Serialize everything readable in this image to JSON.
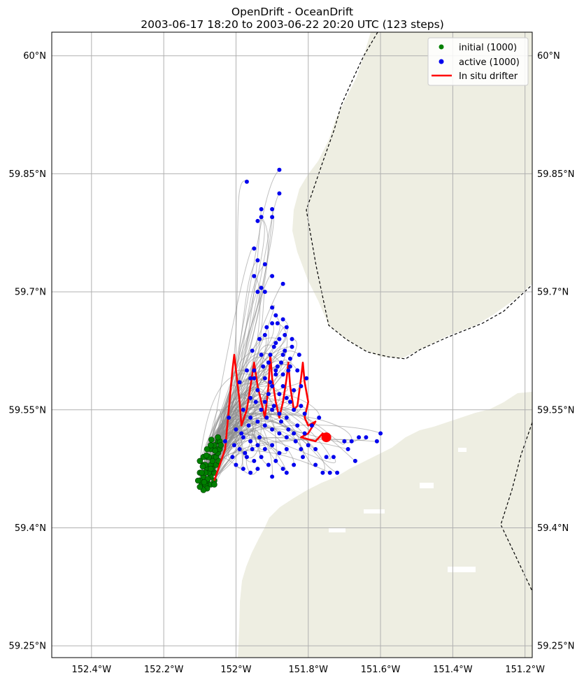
{
  "chart_data": {
    "type": "scatter",
    "title": "OpenDrift - OceanDrift",
    "subtitle": "2003-06-17 18:20 to 2003-06-22 20:20 UTC (123 steps)",
    "xlabel": "",
    "ylabel": "",
    "xlim": [
      -152.51,
      -151.18
    ],
    "ylim": [
      59.235,
      60.03
    ],
    "x_ticks": [
      -152.4,
      -152.2,
      -152.0,
      -151.8,
      -151.6,
      -151.4,
      -151.2
    ],
    "x_tick_labels": [
      "152.4°W",
      "152.2°W",
      "152°W",
      "151.8°W",
      "151.6°W",
      "151.4°W",
      "151.2°W"
    ],
    "y_ticks": [
      60.0,
      59.85,
      59.7,
      59.55,
      59.4,
      59.25
    ],
    "y_tick_labels": [
      "60°N",
      "59.85°N",
      "59.7°N",
      "59.55°N",
      "59.4°N",
      "59.25°N"
    ],
    "grid": true,
    "legend_position": "top-right",
    "legend": [
      {
        "label": "initial (1000)",
        "marker": "dot",
        "color": "#008000"
      },
      {
        "label": "active (1000)",
        "marker": "dot",
        "color": "#0000ee"
      },
      {
        "label": "In situ drifter",
        "marker": "line",
        "color": "#ff0000"
      }
    ],
    "colors": {
      "land": "#eeeee2",
      "trajectory": "#8c8c8c",
      "initial": "#008000",
      "active": "#0000ee",
      "drifter": "#ff0000",
      "border": "#000000"
    },
    "series": [
      {
        "name": "initial (1000)",
        "kind": "points",
        "points": [
          [
            -152.06,
            59.505
          ],
          [
            -152.07,
            59.5
          ],
          [
            -152.08,
            59.49
          ],
          [
            -152.09,
            59.48
          ],
          [
            -152.1,
            59.47
          ],
          [
            -152.05,
            59.51
          ],
          [
            -152.06,
            59.49
          ],
          [
            -152.07,
            59.48
          ],
          [
            -152.08,
            59.475
          ],
          [
            -152.09,
            59.465
          ],
          [
            -152.05,
            59.5
          ],
          [
            -152.06,
            59.47
          ],
          [
            -152.07,
            59.465
          ],
          [
            -152.08,
            59.46
          ],
          [
            -152.095,
            59.455
          ],
          [
            -152.1,
            59.46
          ],
          [
            -152.085,
            59.455
          ],
          [
            -152.075,
            59.47
          ],
          [
            -152.065,
            59.485
          ],
          [
            -152.055,
            59.49
          ],
          [
            -152.05,
            59.495
          ],
          [
            -152.045,
            59.5
          ],
          [
            -152.06,
            59.46
          ],
          [
            -152.07,
            59.455
          ],
          [
            -152.08,
            59.45
          ],
          [
            -152.09,
            59.448
          ],
          [
            -152.1,
            59.452
          ],
          [
            -152.105,
            59.46
          ],
          [
            -152.075,
            59.49
          ],
          [
            -152.085,
            59.48
          ],
          [
            -152.065,
            59.475
          ],
          [
            -152.055,
            59.48
          ],
          [
            -152.045,
            59.51
          ],
          [
            -152.05,
            59.515
          ],
          [
            -152.07,
            59.505
          ],
          [
            -152.08,
            59.5
          ],
          [
            -152.09,
            59.49
          ],
          [
            -152.1,
            59.485
          ],
          [
            -152.085,
            59.47
          ],
          [
            -152.095,
            59.47
          ],
          [
            -152.06,
            59.455
          ],
          [
            -152.07,
            59.475
          ],
          [
            -152.078,
            59.462
          ],
          [
            -152.088,
            59.458
          ],
          [
            -152.058,
            59.498
          ],
          [
            -152.048,
            59.485
          ],
          [
            -152.042,
            59.505
          ],
          [
            -152.068,
            59.512
          ],
          [
            -152.082,
            59.492
          ],
          [
            -152.092,
            59.478
          ]
        ]
      },
      {
        "name": "active (1000)",
        "kind": "points",
        "points": [
          [
            -151.97,
            59.84
          ],
          [
            -151.88,
            59.855
          ],
          [
            -151.88,
            59.825
          ],
          [
            -151.93,
            59.805
          ],
          [
            -151.9,
            59.805
          ],
          [
            -151.93,
            59.795
          ],
          [
            -151.94,
            59.79
          ],
          [
            -151.9,
            59.795
          ],
          [
            -151.95,
            59.755
          ],
          [
            -151.94,
            59.74
          ],
          [
            -151.92,
            59.735
          ],
          [
            -151.9,
            59.72
          ],
          [
            -151.95,
            59.72
          ],
          [
            -151.93,
            59.705
          ],
          [
            -151.94,
            59.7
          ],
          [
            -151.92,
            59.7
          ],
          [
            -151.87,
            59.71
          ],
          [
            -151.9,
            59.68
          ],
          [
            -151.89,
            59.67
          ],
          [
            -151.87,
            59.665
          ],
          [
            -151.86,
            59.655
          ],
          [
            -151.9,
            59.66
          ],
          [
            -151.88,
            59.64
          ],
          [
            -151.92,
            59.645
          ],
          [
            -151.89,
            59.635
          ],
          [
            -151.87,
            59.62
          ],
          [
            -151.85,
            59.615
          ],
          [
            -151.93,
            59.62
          ],
          [
            -151.91,
            59.61
          ],
          [
            -151.89,
            59.6
          ],
          [
            -151.87,
            59.595
          ],
          [
            -151.85,
            59.605
          ],
          [
            -151.83,
            59.6
          ],
          [
            -151.95,
            59.6
          ],
          [
            -151.96,
            59.59
          ],
          [
            -151.92,
            59.59
          ],
          [
            -151.9,
            59.58
          ],
          [
            -151.88,
            59.57
          ],
          [
            -151.86,
            59.565
          ],
          [
            -151.84,
            59.575
          ],
          [
            -151.82,
            59.58
          ],
          [
            -151.94,
            59.575
          ],
          [
            -151.96,
            59.565
          ],
          [
            -151.92,
            59.56
          ],
          [
            -151.9,
            59.55
          ],
          [
            -151.88,
            59.545
          ],
          [
            -151.86,
            59.54
          ],
          [
            -151.84,
            59.55
          ],
          [
            -151.82,
            59.555
          ],
          [
            -151.81,
            59.545
          ],
          [
            -151.98,
            59.55
          ],
          [
            -151.96,
            59.54
          ],
          [
            -151.94,
            59.535
          ],
          [
            -151.92,
            59.53
          ],
          [
            -151.9,
            59.525
          ],
          [
            -151.88,
            59.52
          ],
          [
            -151.86,
            59.515
          ],
          [
            -151.84,
            59.52
          ],
          [
            -152.0,
            59.525
          ],
          [
            -151.98,
            59.515
          ],
          [
            -151.96,
            59.51
          ],
          [
            -151.94,
            59.505
          ],
          [
            -151.92,
            59.5
          ],
          [
            -151.9,
            59.505
          ],
          [
            -151.88,
            59.495
          ],
          [
            -151.86,
            59.5
          ],
          [
            -151.99,
            59.5
          ],
          [
            -151.97,
            59.49
          ],
          [
            -151.95,
            59.485
          ],
          [
            -151.93,
            59.49
          ],
          [
            -151.91,
            59.48
          ],
          [
            -151.89,
            59.485
          ],
          [
            -151.87,
            59.475
          ],
          [
            -152.0,
            59.48
          ],
          [
            -151.98,
            59.475
          ],
          [
            -151.96,
            59.47
          ],
          [
            -151.94,
            59.475
          ],
          [
            -151.9,
            59.465
          ],
          [
            -151.86,
            59.47
          ],
          [
            -151.84,
            59.48
          ],
          [
            -151.82,
            59.5
          ],
          [
            -151.8,
            59.505
          ],
          [
            -151.78,
            59.5
          ],
          [
            -151.75,
            59.49
          ],
          [
            -151.73,
            59.49
          ],
          [
            -151.7,
            59.51
          ],
          [
            -151.68,
            59.51
          ],
          [
            -151.66,
            59.515
          ],
          [
            -151.64,
            59.515
          ],
          [
            -151.6,
            59.52
          ],
          [
            -151.61,
            59.51
          ],
          [
            -151.72,
            59.47
          ],
          [
            -151.74,
            59.47
          ],
          [
            -151.69,
            59.5
          ],
          [
            -151.67,
            59.485
          ],
          [
            -151.78,
            59.48
          ],
          [
            -151.76,
            59.47
          ],
          [
            -152.02,
            59.54
          ],
          [
            -152.03,
            59.51
          ],
          [
            -152.01,
            59.49
          ],
          [
            -151.99,
            59.585
          ],
          [
            -151.97,
            59.6
          ],
          [
            -151.95,
            59.59
          ],
          [
            -151.93,
            59.55
          ],
          [
            -151.91,
            59.57
          ],
          [
            -151.89,
            59.595
          ],
          [
            -151.87,
            59.58
          ],
          [
            -151.85,
            59.56
          ],
          [
            -151.83,
            59.53
          ],
          [
            -151.81,
            59.52
          ],
          [
            -151.79,
            59.53
          ],
          [
            -151.77,
            59.54
          ],
          [
            -151.955,
            59.625
          ],
          [
            -151.935,
            59.64
          ],
          [
            -151.915,
            59.655
          ],
          [
            -151.895,
            59.63
          ],
          [
            -151.875,
            59.61
          ],
          [
            -151.855,
            59.6
          ],
          [
            -151.845,
            59.63
          ],
          [
            -151.865,
            59.645
          ],
          [
            -151.885,
            59.66
          ],
          [
            -151.905,
            59.62
          ],
          [
            -151.925,
            59.605
          ],
          [
            -151.945,
            59.56
          ],
          [
            -151.965,
            59.53
          ],
          [
            -151.985,
            59.52
          ],
          [
            -152.005,
            59.505
          ],
          [
            -151.975,
            59.495
          ],
          [
            -151.955,
            59.5
          ],
          [
            -151.935,
            59.515
          ],
          [
            -151.915,
            59.54
          ],
          [
            -151.895,
            59.555
          ],
          [
            -151.875,
            59.535
          ],
          [
            -151.855,
            59.525
          ],
          [
            -151.835,
            59.51
          ],
          [
            -151.815,
            59.49
          ],
          [
            -151.905,
            59.585
          ],
          [
            -151.885,
            59.605
          ],
          [
            -151.865,
            59.625
          ],
          [
            -151.845,
            59.64
          ],
          [
            -151.825,
            59.62
          ],
          [
            -151.805,
            59.59
          ]
        ]
      },
      {
        "name": "In situ drifter",
        "kind": "line",
        "points": [
          [
            -152.06,
            59.46
          ],
          [
            -152.03,
            59.5
          ],
          [
            -152.02,
            59.55
          ],
          [
            -152.01,
            59.6
          ],
          [
            -152.005,
            59.62
          ],
          [
            -151.99,
            59.56
          ],
          [
            -151.985,
            59.53
          ],
          [
            -151.97,
            59.55
          ],
          [
            -151.96,
            59.58
          ],
          [
            -151.95,
            59.61
          ],
          [
            -151.94,
            59.58
          ],
          [
            -151.93,
            59.56
          ],
          [
            -151.92,
            59.54
          ],
          [
            -151.91,
            59.58
          ],
          [
            -151.905,
            59.62
          ],
          [
            -151.9,
            59.59
          ],
          [
            -151.89,
            59.56
          ],
          [
            -151.88,
            59.54
          ],
          [
            -151.87,
            59.56
          ],
          [
            -151.86,
            59.59
          ],
          [
            -151.855,
            59.61
          ],
          [
            -151.85,
            59.58
          ],
          [
            -151.84,
            59.55
          ],
          [
            -151.83,
            59.555
          ],
          [
            -151.82,
            59.59
          ],
          [
            -151.815,
            59.61
          ],
          [
            -151.81,
            59.585
          ],
          [
            -151.8,
            59.56
          ],
          [
            -151.81,
            59.54
          ],
          [
            -151.8,
            59.53
          ],
          [
            -151.78,
            59.535
          ],
          [
            -151.8,
            59.52
          ],
          [
            -151.82,
            59.515
          ],
          [
            -151.78,
            59.51
          ],
          [
            -151.76,
            59.52
          ],
          [
            -151.75,
            59.515
          ]
        ]
      },
      {
        "name": "",
        "kind": "final-position",
        "points": [
          [
            -151.75,
            59.515
          ]
        ]
      }
    ]
  }
}
